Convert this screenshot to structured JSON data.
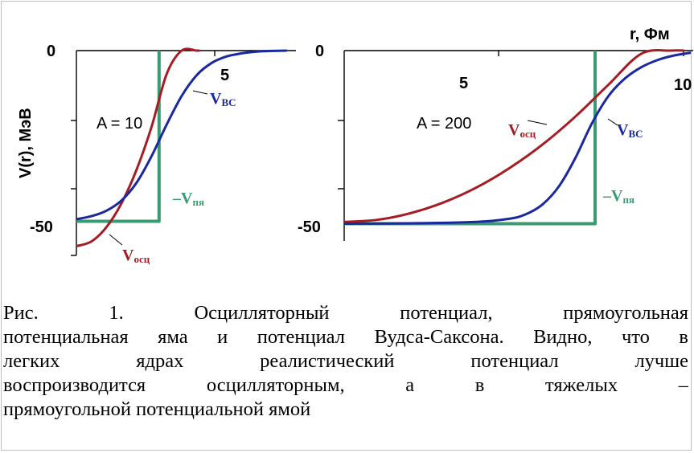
{
  "chart_data": {
    "type": "line",
    "axis_unit_label": "r, Фм",
    "ylabel": "V(r), МэВ",
    "panels": [
      {
        "annotation": "A = 10",
        "x_ticks": [
          "5"
        ],
        "y_ticks": [
          "0",
          "-50"
        ],
        "xlim": [
          0,
          7.3
        ],
        "ylim": [
          -60,
          0
        ],
        "series": [
          {
            "name": "Vосц",
            "color": "#a51d24",
            "x": [
              0,
              0.5,
              1.0,
              1.5,
              2.0,
              2.5,
              3.0,
              3.5,
              4.0,
              4.1
            ],
            "y": [
              -57.3,
              -55.9,
              -51.7,
              -44.7,
              -34.9,
              -22.3,
              -6.9,
              0,
              0,
              0
            ]
          },
          {
            "name": "VВС",
            "color": "#1a2a9e",
            "x": [
              0,
              0.5,
              1.0,
              1.5,
              2.0,
              2.5,
              3.0,
              3.5,
              4.0,
              4.5,
              5.0,
              5.5,
              6.0,
              6.5,
              7.0
            ],
            "y": [
              -49.4,
              -48.5,
              -46.9,
              -43.9,
              -38.7,
              -30.9,
              -21.7,
              -13.3,
              -7.2,
              -3.6,
              -1.7,
              -0.8,
              -0.3,
              -0.1,
              0
            ]
          },
          {
            "name": "Vпя",
            "color": "#3a9a72",
            "x": [
              0,
              2.75,
              2.75
            ],
            "y": [
              -50,
              -50,
              0
            ]
          }
        ]
      },
      {
        "annotation": "A = 200",
        "x_ticks": [
          "5",
          "10"
        ],
        "y_ticks": [
          "0",
          "-50"
        ],
        "xlim": [
          0,
          10.5
        ],
        "ylim": [
          -55,
          0
        ],
        "series": [
          {
            "name": "Vосц",
            "color": "#a51d24",
            "x": [
              0,
              1,
              2,
              3,
              4,
              5,
              6,
              7,
              8,
              9,
              9.9,
              10.3
            ],
            "y": [
              -49.5,
              -48.9,
              -47.0,
              -43.9,
              -39.6,
              -34.0,
              -27.2,
              -19.1,
              -9.9,
              -0.9,
              0,
              0
            ]
          },
          {
            "name": "VВС",
            "color": "#1a2a9e",
            "x": [
              0,
              2,
              4,
              5,
              5.5,
              6,
              6.5,
              7,
              7.5,
              8,
              8.5,
              9,
              9.5,
              10,
              10.5
            ],
            "y": [
              -50,
              -49.9,
              -49.5,
              -48.6,
              -47.3,
              -44.5,
              -39.3,
              -31.1,
              -21.1,
              -13.2,
              -8.1,
              -4.8,
              -2.7,
              -1.4,
              -0.6
            ]
          },
          {
            "name": "Vпя",
            "color": "#3a9a72",
            "x": [
              0,
              7.6,
              7.6
            ],
            "y": [
              -50,
              -50,
              0
            ]
          }
        ]
      }
    ]
  },
  "labels": {
    "p1_zero": "0",
    "p1_minus50": "-50",
    "p1_five": "5",
    "p1_annot": "A = 10",
    "p2_zero": "0",
    "p2_minus50": "-50",
    "p2_five": "5",
    "p2_ten": "10",
    "p2_annot": "A = 200",
    "ylabel": "V(r), МэВ",
    "r_unit": "r, Фм",
    "curve_osc_main": "V",
    "curve_osc_sub": "осц",
    "curve_bc_main": "V",
    "curve_bc_sub": "BC",
    "curve_pw_main": "–V",
    "curve_pw_sub": "пя"
  },
  "caption": {
    "lines": [
      "Рис. 1.   Осцилляторный   потенциал,   прямоугольная",
      "потенциальная яма и потенциал Вудса-Саксона. Видно, что в",
      "легких   ядрах   реалистический   потенциал   лучше",
      "воспроизводится   осцилляторным,   а   в   тяжелых   –",
      "прямоугольной потенциальной ямой"
    ]
  }
}
